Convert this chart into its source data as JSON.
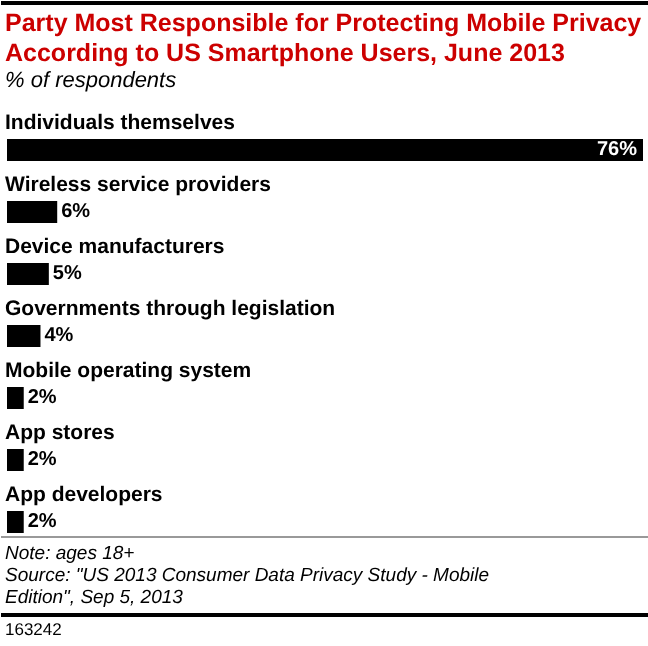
{
  "chart_data": {
    "type": "bar",
    "orientation": "horizontal",
    "title": "Party Most Responsible for Protecting Mobile Privacy According to US Smartphone Users, June 2013",
    "subtitle": "% of respondents",
    "categories": [
      "Individuals themselves",
      "Wireless service providers",
      "Device manufacturers",
      "Governments through legislation",
      "Mobile operating system",
      "App stores",
      "App developers"
    ],
    "values": [
      76,
      6,
      5,
      4,
      2,
      2,
      2
    ],
    "value_labels": [
      "76%",
      "6%",
      "5%",
      "4%",
      "2%",
      "2%",
      "2%"
    ],
    "color": "#000000",
    "annotations": [
      "Note: ages 18+",
      "Source: \"US 2013 Consumer Data Privacy Study - Mobile Edition\", Sep 5, 2013",
      "163242"
    ]
  }
}
